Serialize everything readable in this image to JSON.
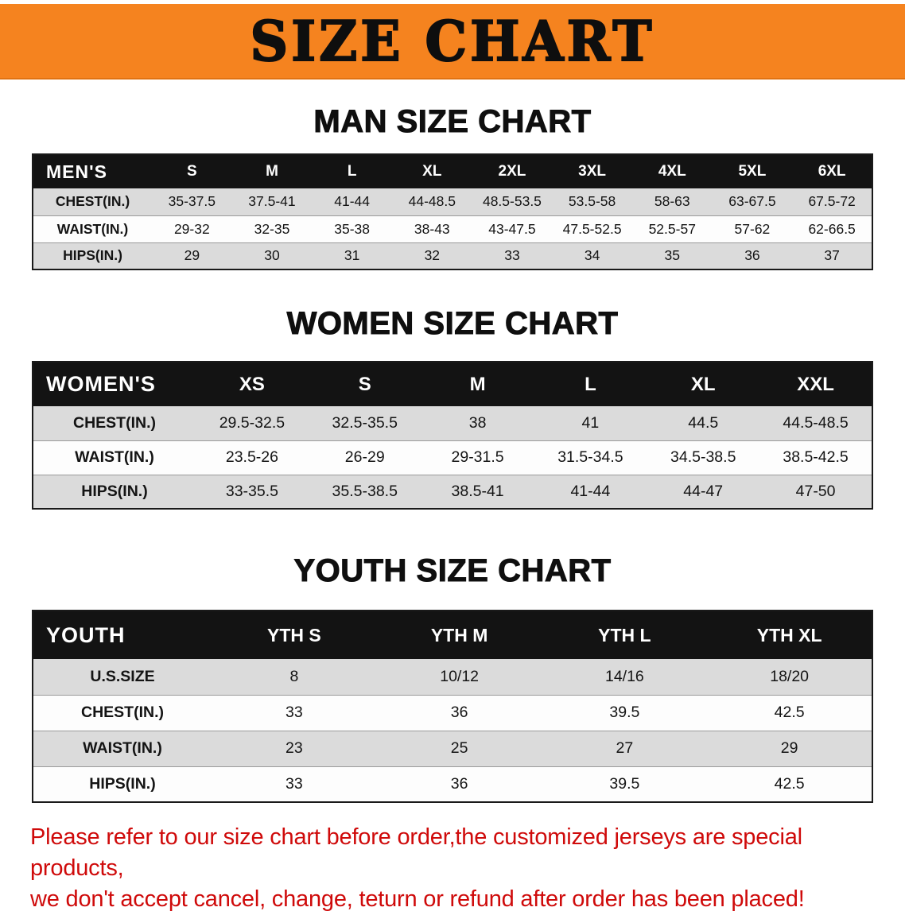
{
  "banner": {
    "title": "SIZE CHART",
    "bg_color": "#f5831f"
  },
  "sections": [
    {
      "id": "men",
      "heading": "MAN SIZE CHART",
      "table": {
        "title": "MEN'S",
        "columns": [
          "S",
          "M",
          "L",
          "XL",
          "2XL",
          "3XL",
          "4XL",
          "5XL",
          "6XL"
        ],
        "rows": [
          {
            "label": "CHEST(IN.)",
            "values": [
              "35-37.5",
              "37.5-41",
              "41-44",
              "44-48.5",
              "48.5-53.5",
              "53.5-58",
              "58-63",
              "63-67.5",
              "67.5-72"
            ]
          },
          {
            "label": "WAIST(IN.)",
            "values": [
              "29-32",
              "32-35",
              "35-38",
              "38-43",
              "43-47.5",
              "47.5-52.5",
              "52.5-57",
              "57-62",
              "62-66.5"
            ]
          },
          {
            "label": "HIPS(IN.)",
            "values": [
              "29",
              "30",
              "31",
              "32",
              "33",
              "34",
              "35",
              "36",
              "37"
            ]
          }
        ]
      }
    },
    {
      "id": "women",
      "heading": "WOMEN SIZE CHART",
      "table": {
        "title": "WOMEN'S",
        "columns": [
          "XS",
          "S",
          "M",
          "L",
          "XL",
          "XXL"
        ],
        "rows": [
          {
            "label": "CHEST(IN.)",
            "values": [
              "29.5-32.5",
              "32.5-35.5",
              "38",
              "41",
              "44.5",
              "44.5-48.5"
            ]
          },
          {
            "label": "WAIST(IN.)",
            "values": [
              "23.5-26",
              "26-29",
              "29-31.5",
              "31.5-34.5",
              "34.5-38.5",
              "38.5-42.5"
            ]
          },
          {
            "label": "HIPS(IN.)",
            "values": [
              "33-35.5",
              "35.5-38.5",
              "38.5-41",
              "41-44",
              "44-47",
              "47-50"
            ]
          }
        ]
      }
    },
    {
      "id": "youth",
      "heading": "YOUTH SIZE CHART",
      "table": {
        "title": "YOUTH",
        "columns": [
          "YTH S",
          "YTH M",
          "YTH L",
          "YTH XL"
        ],
        "rows": [
          {
            "label": "U.S.SIZE",
            "values": [
              "8",
              "10/12",
              "14/16",
              "18/20"
            ]
          },
          {
            "label": "CHEST(IN.)",
            "values": [
              "33",
              "36",
              "39.5",
              "42.5"
            ]
          },
          {
            "label": "WAIST(IN.)",
            "values": [
              "23",
              "25",
              "27",
              "29"
            ]
          },
          {
            "label": "HIPS(IN.)",
            "values": [
              "33",
              "36",
              "39.5",
              "42.5"
            ]
          }
        ]
      }
    }
  ],
  "disclaimer": {
    "color": "#cf0a0a",
    "line1": "Please refer to our size chart before order,the customized jerseys are special products,",
    "line2": "we don't accept cancel, change, teturn or refund after order has been placed!"
  }
}
